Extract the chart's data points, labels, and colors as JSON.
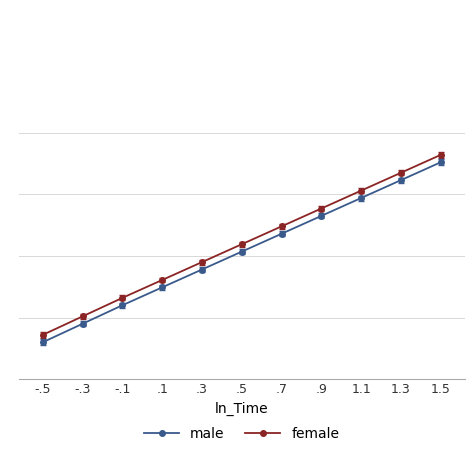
{
  "x_values": [
    -0.5,
    -0.3,
    -0.1,
    0.1,
    0.3,
    0.5,
    0.7,
    0.9,
    1.1,
    1.3,
    1.5
  ],
  "male_y": [
    2.1,
    2.4,
    2.7,
    2.99,
    3.28,
    3.57,
    3.86,
    4.15,
    4.44,
    4.73,
    5.02
  ],
  "female_y": [
    2.22,
    2.52,
    2.82,
    3.11,
    3.4,
    3.69,
    3.98,
    4.27,
    4.56,
    4.85,
    5.14
  ],
  "male_yerr": [
    0.05,
    0.04,
    0.04,
    0.04,
    0.04,
    0.04,
    0.04,
    0.04,
    0.04,
    0.04,
    0.05
  ],
  "female_yerr": [
    0.05,
    0.04,
    0.04,
    0.04,
    0.04,
    0.04,
    0.04,
    0.04,
    0.04,
    0.04,
    0.05
  ],
  "male_color": "#3a5a8c",
  "female_color": "#8b2424",
  "xlabel": "ln_Time",
  "xticks": [
    -0.5,
    -0.3,
    -0.1,
    0.1,
    0.3,
    0.5,
    0.7,
    0.9,
    1.1,
    1.3,
    1.5
  ],
  "xtick_labels": [
    "-.5",
    "-.3",
    "-.1",
    ".1",
    ".3",
    ".5",
    ".7",
    ".9",
    "1.1",
    "1.3",
    "1.5"
  ],
  "background_color": "#ffffff",
  "legend_male": "male",
  "legend_female": "female",
  "marker_size": 4,
  "linewidth": 1.3,
  "capsize": 2.5,
  "elinewidth": 0.9,
  "ylim_min": 1.5,
  "ylim_max": 7.5,
  "xlim_min": -0.62,
  "xlim_max": 1.62,
  "grid_lines": [
    2.5,
    3.5,
    4.5,
    5.5
  ],
  "grid_color": "#d8d8d8",
  "grid_linewidth": 0.7,
  "spine_color": "#aaaaaa",
  "tick_fontsize": 9,
  "xlabel_fontsize": 10,
  "legend_fontsize": 10
}
